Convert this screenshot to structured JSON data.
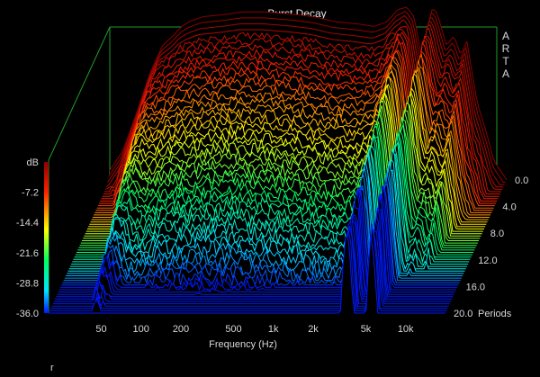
{
  "chart_data": {
    "type": "waterfall",
    "title": "Burst Decay",
    "xlabel": "Frequency (Hz)",
    "x_scale": "log",
    "x_ticks": [
      "50",
      "100",
      "200",
      "500",
      "1k",
      "2k",
      "5k",
      "10k"
    ],
    "x_tick_values": [
      50,
      100,
      200,
      500,
      1000,
      2000,
      5000,
      10000
    ],
    "xlim": [
      20,
      20000
    ],
    "z_label": "Periods",
    "z_ticks": [
      "0.0",
      "4.0",
      "8.0",
      "12.0",
      "16.0",
      "20.0"
    ],
    "z_tick_values": [
      0,
      4,
      8,
      12,
      16,
      20
    ],
    "zlim": [
      0,
      20
    ],
    "color_scale": {
      "unit": "dB",
      "ticks": [
        "dB",
        "-7.2",
        "-14.4",
        "-21.6",
        "-28.8",
        "-36.0"
      ],
      "values": [
        0,
        -7.2,
        -14.4,
        -21.6,
        -28.8,
        -36.0
      ],
      "colors": [
        "#8b0000",
        "#ff2000",
        "#ffff00",
        "#00ff60",
        "#00e5ff",
        "#0018ff"
      ]
    },
    "ylim": [
      -36,
      0
    ],
    "slice_count": 58,
    "profile": {
      "freq": [
        20,
        25,
        32,
        40,
        50,
        60,
        70,
        80,
        100,
        150,
        200,
        300,
        500,
        700,
        1000,
        1500,
        2000,
        2500,
        3000,
        3500,
        4000,
        4500,
        5000,
        5500,
        6000,
        7000,
        8000,
        9000,
        10000,
        11000,
        12000,
        14000,
        16000,
        20000
      ],
      "level_db": [
        -34,
        -30,
        -22,
        -14,
        -8,
        -6,
        -4,
        -3,
        -2,
        -1.5,
        -1,
        -1,
        -1.5,
        -2,
        -3,
        -3.5,
        -4,
        -3,
        -0.5,
        0,
        -2,
        -10,
        -6,
        0,
        -1.5,
        -8,
        -6,
        -10,
        -7,
        -14,
        -20,
        -26,
        -32,
        -36
      ]
    }
  },
  "brand": {
    "letters": [
      "A",
      "R",
      "T",
      "A"
    ]
  },
  "footer": {
    "mark": "r"
  }
}
